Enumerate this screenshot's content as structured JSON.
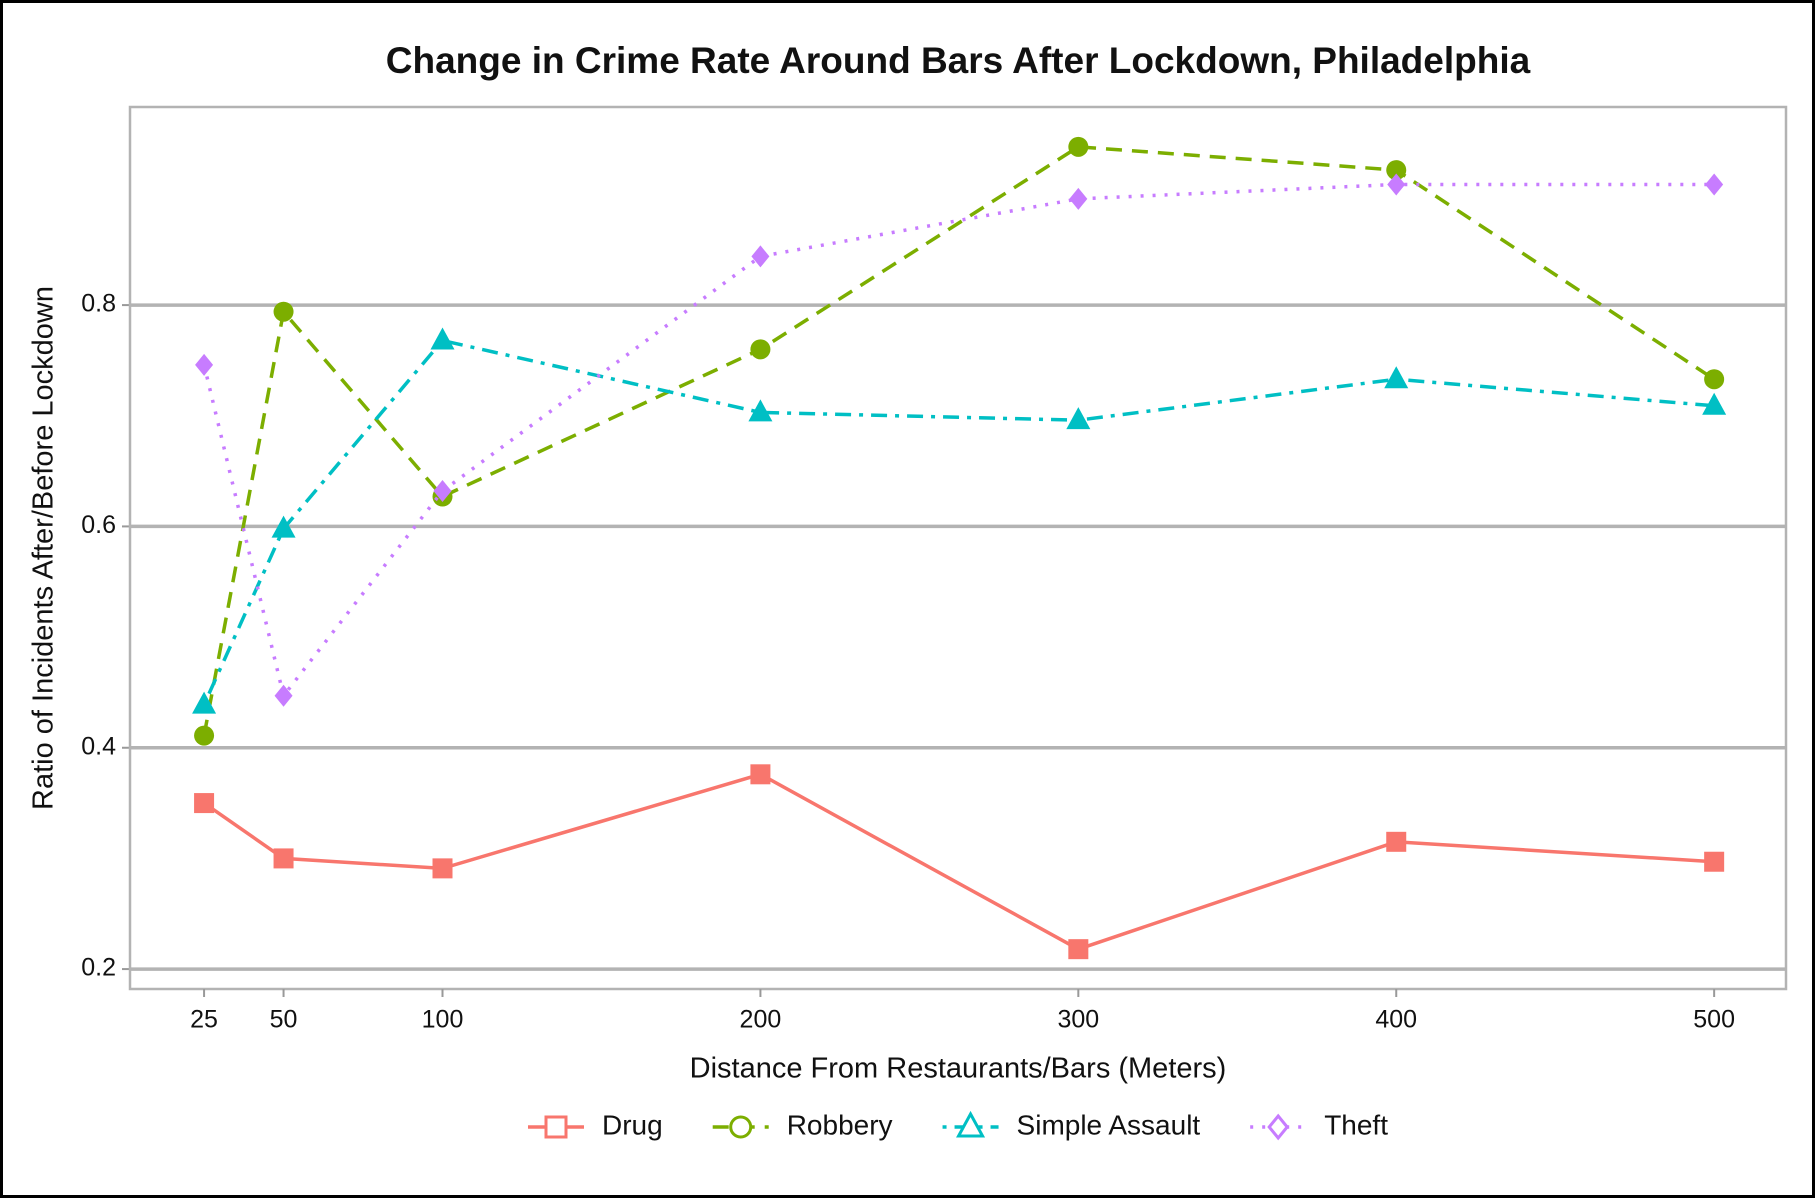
{
  "chart_data": {
    "type": "line",
    "title": "Change in Crime Rate Around Bars After Lockdown, Philadelphia",
    "xlabel": "Distance From Restaurants/Bars (Meters)",
    "ylabel": "Ratio of Incidents After/Before Lockdown",
    "x": [
      25,
      50,
      100,
      200,
      300,
      400,
      500
    ],
    "series": [
      {
        "name": "Drug",
        "color": "#F8766D",
        "dash": "solid",
        "marker": "square",
        "values": [
          0.35,
          0.3,
          0.291,
          0.376,
          0.218,
          0.315,
          0.297
        ]
      },
      {
        "name": "Robbery",
        "color": "#7CAE00",
        "dash": "dashed",
        "marker": "circle",
        "values": [
          0.411,
          0.794,
          0.627,
          0.76,
          0.943,
          0.922,
          0.733
        ]
      },
      {
        "name": "Simple Assault",
        "color": "#00BFC4",
        "dash": "dotdash",
        "marker": "triangle",
        "values": [
          0.439,
          0.598,
          0.768,
          0.703,
          0.696,
          0.733,
          0.709
        ]
      },
      {
        "name": "Theft",
        "color": "#C77CFF",
        "dash": "dotted",
        "marker": "diamond",
        "values": [
          0.746,
          0.447,
          0.632,
          0.844,
          0.896,
          0.909,
          0.909
        ]
      }
    ],
    "xlim": [
      1.7,
      522.6
    ],
    "xticks": [
      25,
      50,
      100,
      200,
      300,
      400,
      500
    ],
    "ylim": [
      0.182,
      0.979
    ],
    "yticks": [
      0.2,
      0.4,
      0.6,
      0.8
    ],
    "grid": true,
    "legend": "bottom"
  }
}
